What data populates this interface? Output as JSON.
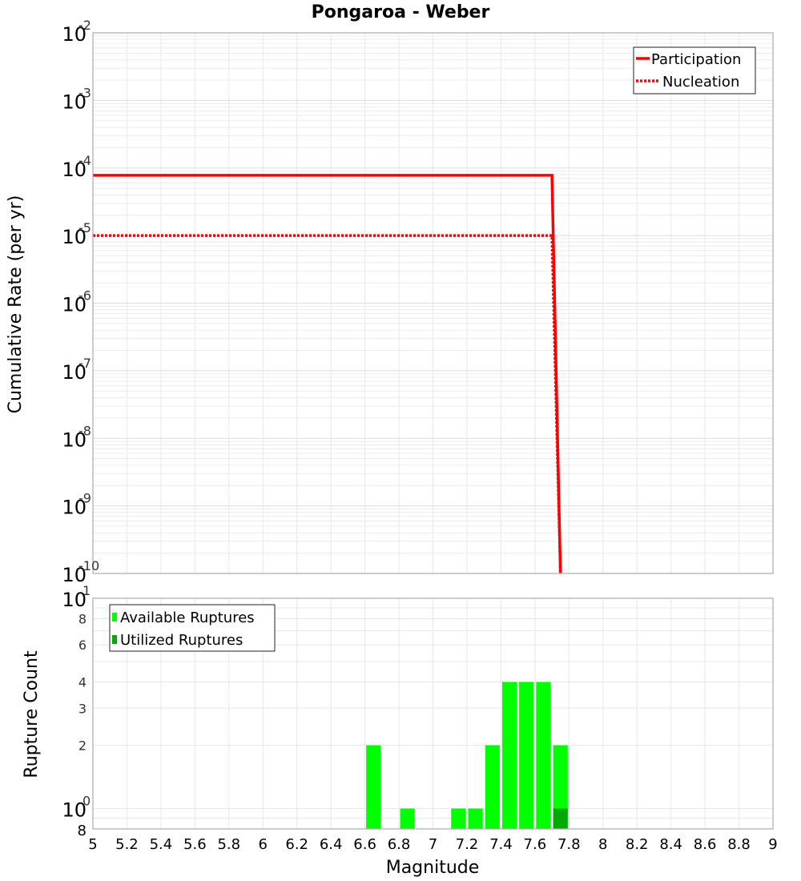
{
  "chart_data": [
    {
      "type": "line",
      "title": "Pongaroa - Weber",
      "xlabel": "",
      "ylabel": "Cumulative Rate (per yr)",
      "xlim": [
        5,
        9
      ],
      "ylim": [
        1e-10,
        0.01
      ],
      "yscale": "log",
      "grid": true,
      "legend_position": "top-right",
      "y_tick_labels": [
        "10^-2",
        "10^-3",
        "10^-4",
        "10^-5",
        "10^-6",
        "10^-7",
        "10^-8",
        "10^-9",
        "10^-10"
      ],
      "series": [
        {
          "name": "Participation",
          "style": "solid",
          "color": "#ff0000",
          "x": [
            5.0,
            7.7,
            7.75
          ],
          "y": [
            7.8e-05,
            7.8e-05,
            1e-10
          ]
        },
        {
          "name": "Nucleation",
          "style": "dotted",
          "color": "#ff0000",
          "x": [
            5.0,
            7.7,
            7.75
          ],
          "y": [
            1e-05,
            1e-05,
            1e-10
          ]
        }
      ]
    },
    {
      "type": "bar",
      "title": "",
      "xlabel": "Magnitude",
      "ylabel": "Rupture Count",
      "xlim": [
        5,
        9
      ],
      "ylim": [
        0.8,
        10
      ],
      "yscale": "log",
      "grid": true,
      "legend_position": "top-left",
      "x_tick_labels": [
        "5",
        "5.2",
        "5.4",
        "5.6",
        "5.8",
        "6",
        "6.2",
        "6.4",
        "6.6",
        "6.8",
        "7",
        "7.2",
        "7.4",
        "7.6",
        "7.8",
        "8",
        "8.2",
        "8.4",
        "8.6",
        "8.8",
        "9"
      ],
      "y_tick_labels": [
        "10^1",
        "8",
        "6",
        "4",
        "3",
        "2",
        "10^0",
        "8"
      ],
      "bin_width": 0.1,
      "categories": [
        6.65,
        6.85,
        7.15,
        7.25,
        7.35,
        7.45,
        7.55,
        7.65,
        7.75
      ],
      "series": [
        {
          "name": "Available Ruptures",
          "color": "#00ff00",
          "values": [
            2,
            1,
            1,
            1,
            2,
            4,
            4,
            4,
            2
          ]
        },
        {
          "name": "Utilized Ruptures",
          "color": "#00aa00",
          "values": [
            0,
            0,
            0,
            0,
            0,
            0,
            0,
            0,
            1
          ]
        }
      ]
    }
  ],
  "labels": {
    "title": "Pongaroa - Weber",
    "top_ylabel": "Cumulative Rate (per yr)",
    "bottom_ylabel": "Rupture Count",
    "xlabel": "Magnitude",
    "legend_top": [
      "Participation",
      "Nucleation"
    ],
    "legend_bottom": [
      "Available Ruptures",
      "Utilized Ruptures"
    ]
  }
}
